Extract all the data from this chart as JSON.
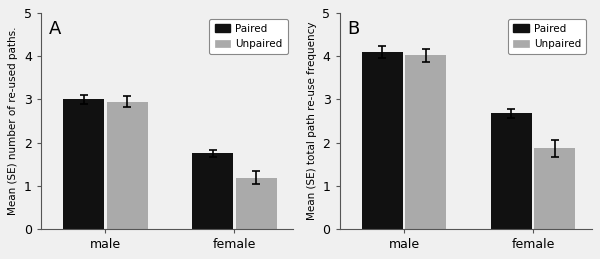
{
  "panel_A": {
    "label": "A",
    "ylabel": "Mean (SE) number of re-used paths.",
    "categories": [
      "male",
      "female"
    ],
    "paired_values": [
      3.0,
      1.75
    ],
    "unpaired_values": [
      2.95,
      1.18
    ],
    "paired_errors": [
      0.1,
      0.08
    ],
    "unpaired_errors": [
      0.13,
      0.15
    ],
    "ylim": [
      0,
      5
    ],
    "yticks": [
      0,
      1,
      2,
      3,
      4,
      5
    ]
  },
  "panel_B": {
    "label": "B",
    "ylabel": "Mean (SE) total path re-use frequency",
    "categories": [
      "male",
      "female"
    ],
    "paired_values": [
      4.1,
      2.68
    ],
    "unpaired_values": [
      4.03,
      1.87
    ],
    "paired_errors": [
      0.13,
      0.1
    ],
    "unpaired_errors": [
      0.15,
      0.2
    ],
    "ylim": [
      0,
      5
    ],
    "yticks": [
      0,
      1,
      2,
      3,
      4,
      5
    ]
  },
  "bar_width": 0.35,
  "bar_gap": 0.02,
  "paired_color": "#111111",
  "unpaired_color": "#aaaaaa",
  "unpaired_edge_color": "#888888",
  "legend_labels": [
    "Paired",
    "Unpaired"
  ],
  "background_color": "#f0f0f0",
  "group_positions": [
    1.0,
    2.1
  ],
  "xlim": [
    0.45,
    2.6
  ]
}
